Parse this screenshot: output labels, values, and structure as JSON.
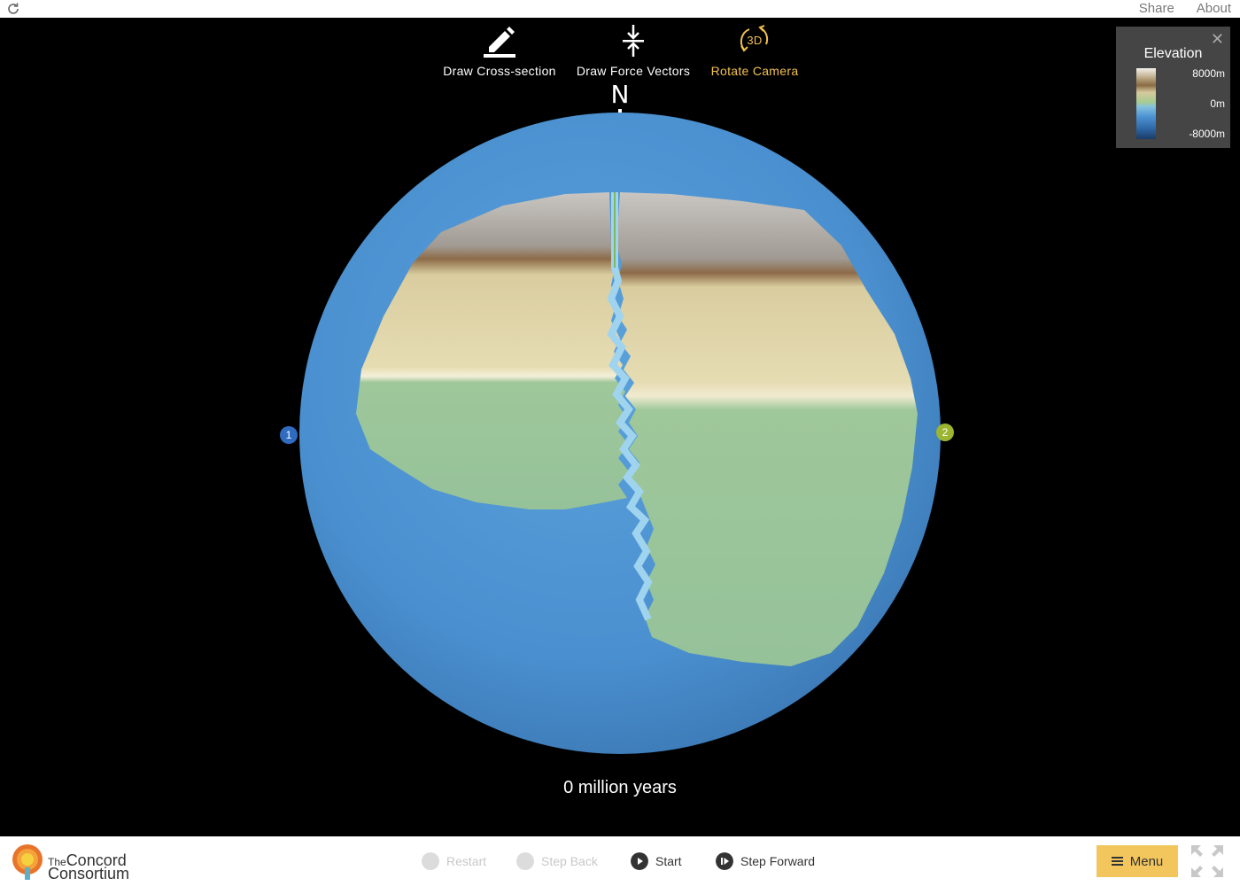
{
  "header": {
    "links": [
      "Share",
      "About"
    ]
  },
  "toolbar": {
    "tools": [
      {
        "label": "Draw Cross-section",
        "icon": "pencil-icon",
        "active": false
      },
      {
        "label": "Draw Force Vectors",
        "icon": "compress-arrows-icon",
        "active": false
      },
      {
        "label": "Rotate Camera",
        "icon": "rotate-3d-icon",
        "active": true,
        "badge": "3D"
      }
    ]
  },
  "compass": {
    "label": "N"
  },
  "markers": [
    {
      "label": "1",
      "color": "#2f6cc0"
    },
    {
      "label": "2",
      "color": "#9bb530"
    }
  ],
  "time": {
    "label": "0 million years"
  },
  "legend": {
    "title": "Elevation",
    "ticks": [
      "8000m",
      "0m",
      "-8000m"
    ],
    "close_icon": "close-icon"
  },
  "footer": {
    "logo_line1_prefix": "The",
    "logo_line1": "Concord",
    "logo_line2": "Consortium",
    "controls": [
      {
        "label": "Restart",
        "icon": "restart-icon",
        "enabled": false
      },
      {
        "label": "Step Back",
        "icon": "step-back-icon",
        "enabled": false
      },
      {
        "label": "Start",
        "icon": "play-icon",
        "enabled": true
      },
      {
        "label": "Step Forward",
        "icon": "step-forward-icon",
        "enabled": true
      }
    ],
    "menu_label": "Menu"
  },
  "colors": {
    "accent": "#f2c14e",
    "menu": "#f2c65c",
    "ocean": "#4a8fcf",
    "land_low": "#9dc698",
    "land_mid": "#dcd2a6",
    "land_high": "#b8b4b0"
  }
}
